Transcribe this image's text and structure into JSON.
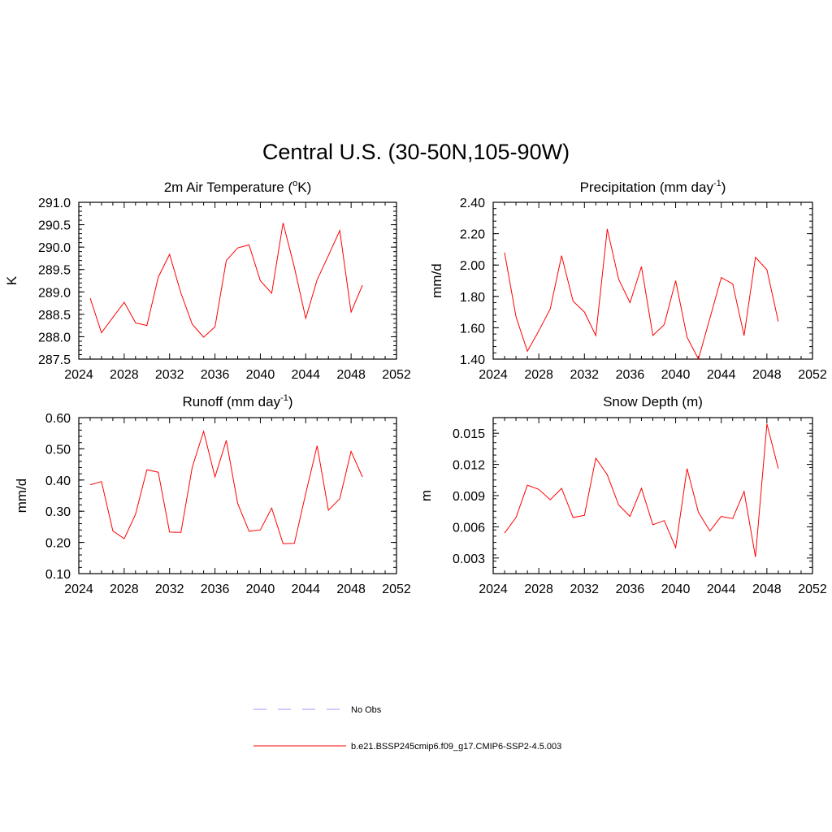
{
  "title": "Central U.S. (30-50N,105-90W)",
  "legend": [
    {
      "label": "No Obs",
      "color": "#9999ff",
      "style": "dashed"
    },
    {
      "label": "b.e21.BSSP245cmip6.f09_g17.CMIP6-SSP2-4.5.003",
      "color": "#ff0000",
      "style": "solid"
    }
  ],
  "chart_data": [
    {
      "type": "line",
      "title": "2m Air Temperature (",
      "title_sup": "o",
      "title_post": "K)",
      "ylabel": "K",
      "xlim": [
        2024,
        2052
      ],
      "ylim": [
        287.5,
        291.0
      ],
      "xticks": [
        "2024",
        "2028",
        "2032",
        "2036",
        "2040",
        "2044",
        "2048",
        "2052"
      ],
      "yticks": [
        "287.5",
        "288.0",
        "288.5",
        "289.0",
        "289.5",
        "290.0",
        "290.5",
        "291.0"
      ],
      "series": [
        {
          "color": "#ff0000",
          "x": [
            2025,
            2026,
            2027,
            2028,
            2029,
            2030,
            2031,
            2032,
            2033,
            2034,
            2035,
            2036,
            2037,
            2038,
            2039,
            2040,
            2041,
            2042,
            2043,
            2044,
            2045,
            2046,
            2047,
            2048,
            2049
          ],
          "values": [
            288.86,
            288.09,
            288.43,
            288.77,
            288.31,
            288.25,
            289.33,
            289.84,
            288.97,
            288.28,
            287.99,
            288.22,
            289.7,
            289.98,
            290.05,
            289.25,
            288.97,
            290.54,
            289.55,
            288.41,
            289.27,
            289.81,
            290.37,
            288.55,
            289.15
          ]
        }
      ]
    },
    {
      "type": "line",
      "title": "Precipitation (mm day",
      "title_sup": "-1",
      "title_post": ")",
      "ylabel": "mm/d",
      "xlim": [
        2024,
        2052
      ],
      "ylim": [
        1.4,
        2.4
      ],
      "xticks": [
        "2024",
        "2028",
        "2032",
        "2036",
        "2040",
        "2044",
        "2048",
        "2052"
      ],
      "yticks": [
        "1.40",
        "1.60",
        "1.80",
        "2.00",
        "2.20",
        "2.40"
      ],
      "series": [
        {
          "color": "#ff0000",
          "x": [
            2025,
            2026,
            2027,
            2028,
            2029,
            2030,
            2031,
            2032,
            2033,
            2034,
            2035,
            2036,
            2037,
            2038,
            2039,
            2040,
            2041,
            2042,
            2043,
            2044,
            2045,
            2046,
            2047,
            2048,
            2049
          ],
          "values": [
            2.08,
            1.67,
            1.45,
            1.58,
            1.72,
            2.06,
            1.77,
            1.7,
            1.55,
            2.23,
            1.91,
            1.76,
            1.99,
            1.55,
            1.62,
            1.9,
            1.54,
            1.4,
            1.66,
            1.92,
            1.88,
            1.55,
            2.05,
            1.97,
            1.64
          ]
        }
      ]
    },
    {
      "type": "line",
      "title": "Runoff (mm day",
      "title_sup": "-1",
      "title_post": ")",
      "ylabel": "mm/d",
      "xlim": [
        2024,
        2052
      ],
      "ylim": [
        0.1,
        0.6
      ],
      "xticks": [
        "2024",
        "2028",
        "2032",
        "2036",
        "2040",
        "2044",
        "2048",
        "2052"
      ],
      "yticks": [
        "0.10",
        "0.20",
        "0.30",
        "0.40",
        "0.50",
        "0.60"
      ],
      "series": [
        {
          "color": "#ff0000",
          "x": [
            2025,
            2026,
            2027,
            2028,
            2029,
            2030,
            2031,
            2032,
            2033,
            2034,
            2035,
            2036,
            2037,
            2038,
            2039,
            2040,
            2041,
            2042,
            2043,
            2044,
            2045,
            2046,
            2047,
            2048,
            2049
          ],
          "values": [
            0.385,
            0.395,
            0.237,
            0.212,
            0.29,
            0.433,
            0.425,
            0.233,
            0.232,
            0.441,
            0.556,
            0.41,
            0.527,
            0.325,
            0.236,
            0.24,
            0.31,
            0.196,
            0.197,
            0.357,
            0.51,
            0.303,
            0.34,
            0.492,
            0.41
          ]
        }
      ]
    },
    {
      "type": "line",
      "title": "Snow Depth (m)",
      "title_sup": "",
      "title_post": "",
      "ylabel": "m",
      "xlim": [
        2024,
        2052
      ],
      "ylim": [
        0.0015,
        0.0165
      ],
      "xticks": [
        "2024",
        "2028",
        "2032",
        "2036",
        "2040",
        "2044",
        "2048",
        "2052"
      ],
      "yticks": [
        "0.003",
        "0.006",
        "0.009",
        "0.012",
        "0.015"
      ],
      "ytick_values": [
        0.003,
        0.006,
        0.009,
        0.012,
        0.015
      ],
      "series": [
        {
          "color": "#ff0000",
          "x": [
            2025,
            2026,
            2027,
            2028,
            2029,
            2030,
            2031,
            2032,
            2033,
            2034,
            2035,
            2036,
            2037,
            2038,
            2039,
            2040,
            2041,
            2042,
            2043,
            2044,
            2045,
            2046,
            2047,
            2048,
            2049
          ],
          "values": [
            0.0054,
            0.0069,
            0.01,
            0.0096,
            0.0086,
            0.0097,
            0.0069,
            0.0071,
            0.0126,
            0.011,
            0.0081,
            0.007,
            0.0097,
            0.0062,
            0.0066,
            0.004,
            0.0116,
            0.0074,
            0.0056,
            0.007,
            0.0068,
            0.0094,
            0.0031,
            0.0159,
            0.0116
          ]
        }
      ]
    }
  ]
}
